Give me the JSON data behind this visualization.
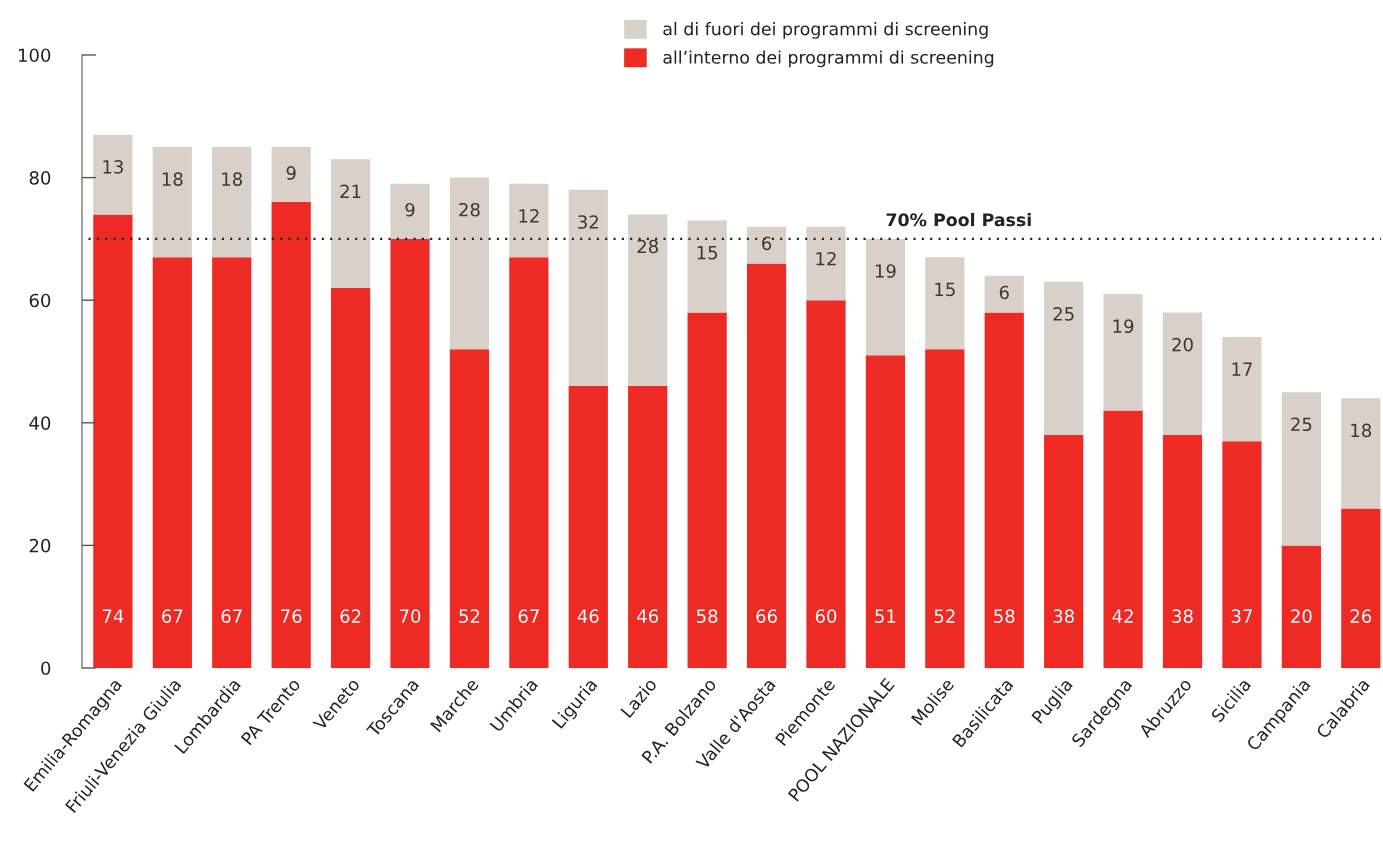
{
  "chart_data": {
    "type": "bar",
    "stacked": true,
    "categories": [
      "Emilia-Romagna",
      "Friuli-Venezia Giulia",
      "Lombardia",
      "PA Trento",
      "Veneto",
      "Toscana",
      "Marche",
      "Umbria",
      "Liguria",
      "Lazio",
      "P.A. Bolzano",
      "Valle d'Aosta",
      "Piemonte",
      "POOL NAZIONALE",
      "Molise",
      "Basilicata",
      "Puglia",
      "Sardegna",
      "Abruzzo",
      "Sicilia",
      "Campania",
      "Calabria"
    ],
    "series": [
      {
        "name": "all’interno dei programmi di screening",
        "color": "#ee2a24",
        "values": [
          74,
          67,
          67,
          76,
          62,
          70,
          52,
          67,
          46,
          46,
          58,
          66,
          60,
          51,
          52,
          58,
          38,
          42,
          38,
          37,
          20,
          26
        ]
      },
      {
        "name": "al di fuori dei programmi di screening",
        "color": "#d9d0ca",
        "values": [
          13,
          18,
          18,
          9,
          21,
          9,
          28,
          12,
          32,
          28,
          15,
          6,
          12,
          19,
          15,
          6,
          25,
          19,
          20,
          17,
          25,
          18
        ]
      }
    ],
    "ylim": [
      0,
      100
    ],
    "yticks": [
      0,
      20,
      40,
      60,
      80,
      100
    ],
    "ref_lines": [
      {
        "axis": "y",
        "value": 70,
        "label": "70% Pool Passi",
        "color": "#222222",
        "line_style": "dotted"
      }
    ],
    "data_labels": true,
    "grid": false,
    "legend": "top"
  }
}
